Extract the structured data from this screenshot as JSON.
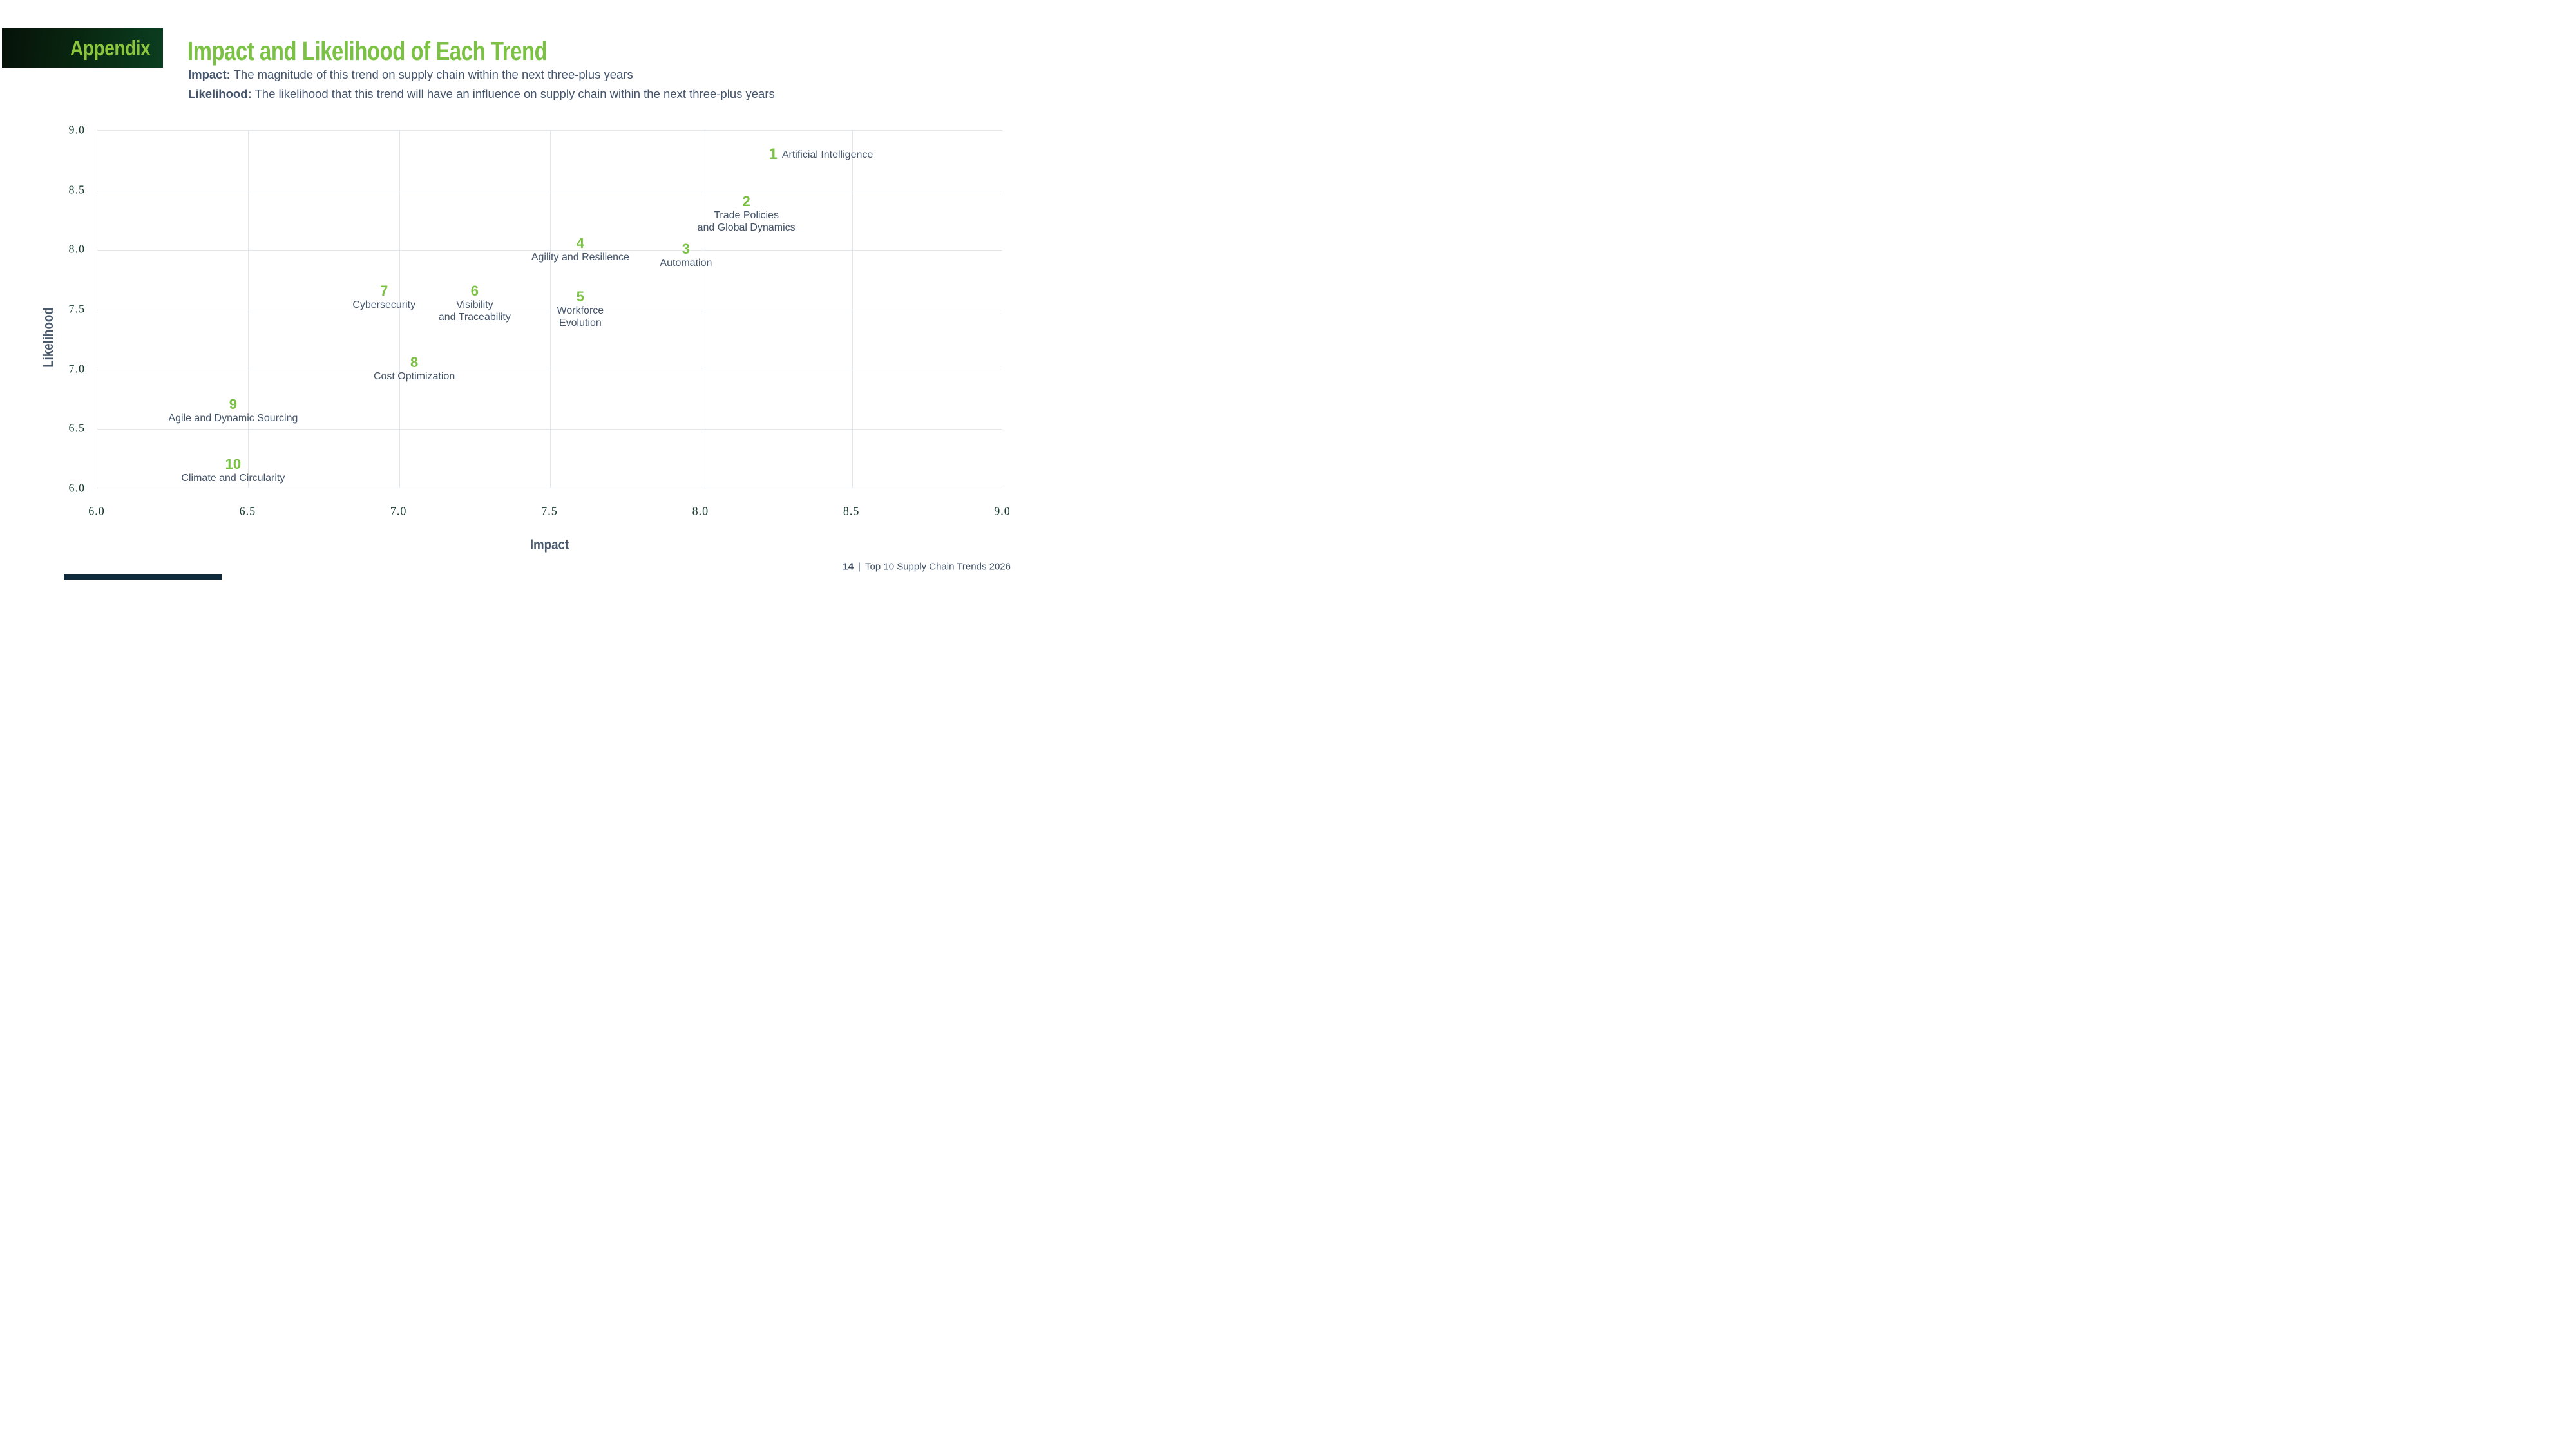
{
  "page": {
    "appendix_tab": "Appendix",
    "title": "Impact and Likelihood of Each Trend",
    "subtitle_impact_label": "Impact:",
    "subtitle_impact_text": " The magnitude of this trend on supply chain within the next three-plus years",
    "subtitle_likelihood_label": "Likelihood:",
    "subtitle_likelihood_text": " The likelihood that this trend will have an influence on supply chain within the next three-plus years",
    "footer_page_number": "14",
    "footer_separator": "|",
    "footer_text": "Top 10 Supply Chain Trends 2026"
  },
  "colors": {
    "accent_green": "#7BC143",
    "appendix_text_green": "#8CC63F",
    "appendix_box_gradient_start": "#061209",
    "appendix_box_gradient_end": "#0B3E20",
    "axis_tick_green": "#143B2B",
    "slate_text": "#44546A",
    "gridline_gray": "#E3E6E8",
    "footer_bar_navy": "#0D2B3C"
  },
  "chart_data": {
    "type": "scatter",
    "title": "Impact and Likelihood of Each Trend",
    "xlabel": "Impact",
    "ylabel": "Likelihood",
    "xlim": [
      6.0,
      9.0
    ],
    "ylim": [
      6.0,
      9.0
    ],
    "x_ticks": [
      "6.0",
      "6.5",
      "7.0",
      "7.5",
      "8.0",
      "8.5",
      "9.0"
    ],
    "y_ticks": [
      "9.0",
      "8.5",
      "8.0",
      "7.5",
      "7.0",
      "6.5",
      "6.0"
    ],
    "grid": true,
    "grid_interval": 0.5,
    "legend": "none",
    "points": [
      {
        "rank": "1",
        "label": "Artificial Intelligence",
        "label_lines": [
          "Artificial Intelligence"
        ],
        "label_position": "right",
        "impact": 8.25,
        "likelihood": 8.8
      },
      {
        "rank": "2",
        "label": "Trade Policies and Global Dynamics",
        "label_lines": [
          "Trade Policies",
          "and Global Dynamics"
        ],
        "label_position": "below",
        "impact": 8.15,
        "likelihood": 8.4
      },
      {
        "rank": "3",
        "label": "Automation",
        "label_lines": [
          "Automation"
        ],
        "label_position": "below",
        "impact": 7.95,
        "likelihood": 8.0
      },
      {
        "rank": "4",
        "label": "Agility and Resilience",
        "label_lines": [
          "Agility and Resilience"
        ],
        "label_position": "below",
        "impact": 7.6,
        "likelihood": 8.05
      },
      {
        "rank": "5",
        "label": "Workforce Evolution",
        "label_lines": [
          "Workforce",
          "Evolution"
        ],
        "label_position": "below",
        "impact": 7.6,
        "likelihood": 7.6
      },
      {
        "rank": "6",
        "label": "Visibility and Traceability",
        "label_lines": [
          "Visibility",
          "and Traceability"
        ],
        "label_position": "below",
        "impact": 7.25,
        "likelihood": 7.65
      },
      {
        "rank": "7",
        "label": "Cybersecurity",
        "label_lines": [
          "Cybersecurity"
        ],
        "label_position": "below",
        "impact": 6.95,
        "likelihood": 7.65
      },
      {
        "rank": "8",
        "label": "Cost Optimization",
        "label_lines": [
          "Cost Optimization"
        ],
        "label_position": "below",
        "impact": 7.05,
        "likelihood": 7.05
      },
      {
        "rank": "9",
        "label": "Agile and Dynamic Sourcing",
        "label_lines": [
          "Agile and Dynamic Sourcing"
        ],
        "label_position": "below",
        "impact": 6.45,
        "likelihood": 6.7
      },
      {
        "rank": "10",
        "label": "Climate and Circularity",
        "label_lines": [
          "Climate and Circularity"
        ],
        "label_position": "below",
        "impact": 6.45,
        "likelihood": 6.2
      }
    ]
  }
}
